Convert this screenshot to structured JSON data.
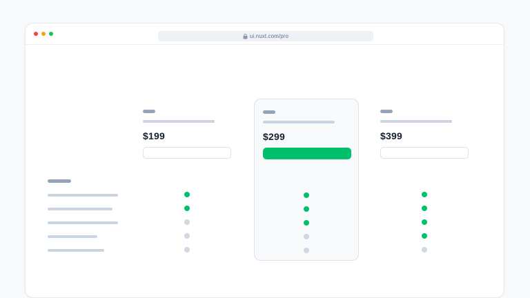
{
  "browser": {
    "url": "ui.nuxt.com/pro",
    "window_controls": [
      "close",
      "minimize",
      "zoom"
    ]
  },
  "pricing": {
    "plans": [
      {
        "price": "$199",
        "highlighted": false,
        "button_style": "outline",
        "features": [
          true,
          true,
          false,
          false,
          false
        ]
      },
      {
        "price": "$299",
        "highlighted": true,
        "button_style": "solid",
        "features": [
          true,
          true,
          true,
          false,
          false
        ]
      },
      {
        "price": "$399",
        "highlighted": false,
        "button_style": "outline",
        "features": [
          true,
          true,
          true,
          true,
          false
        ]
      }
    ],
    "feature_row_count": 5
  },
  "colors": {
    "accent_green": "#00C16A",
    "inactive_dot": "#CFD8E3",
    "skeleton_dark": "#94A3B8",
    "skeleton_light": "#CBD5E1",
    "highlight_card_bg": "#F8FAFC",
    "traffic_red": "#F14343",
    "traffic_yellow": "#F2A50C",
    "traffic_green": "#17C05F"
  }
}
